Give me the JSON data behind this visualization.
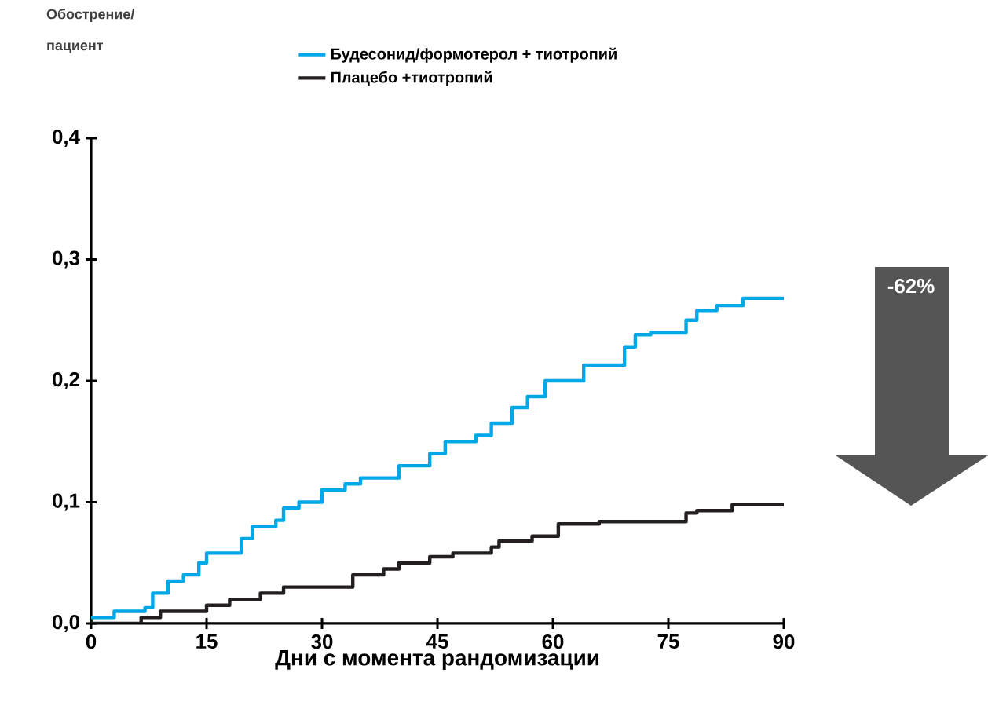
{
  "chart_data": {
    "type": "step",
    "xlabel": "Дни с момента рандомизации",
    "ylabel": "Обострение/ пациент",
    "annotations": [
      "-62%"
    ],
    "xlim": [
      0,
      90
    ],
    "ylim": [
      0,
      0.4
    ],
    "xticks": [
      0,
      15,
      30,
      45,
      60,
      75,
      90
    ],
    "yticks": [
      {
        "value": 0,
        "label": "0,0"
      },
      {
        "value": 0.1,
        "label": "0,1"
      },
      {
        "value": 0.2,
        "label": "0,2"
      },
      {
        "value": 0.3,
        "label": "0,3"
      },
      {
        "value": 0.4,
        "label": "0,4"
      }
    ],
    "grid": false,
    "legend": "top",
    "marker": "none",
    "line_style": "solid",
    "series": [
      {
        "name": "Будесонид/формотерол  + тиотропий",
        "color": "#00a8e8",
        "x": [
          0,
          3,
          7,
          8,
          10,
          12,
          14,
          15,
          19.5,
          21,
          24,
          25,
          27,
          30,
          33,
          35,
          40,
          44,
          46,
          50,
          52,
          54.7,
          56.7,
          59,
          64,
          69.3,
          70.7,
          72.7,
          77.3,
          78.7,
          81.3,
          84.7,
          90
        ],
        "values": [
          0.005,
          0.01,
          0.013,
          0.025,
          0.035,
          0.04,
          0.05,
          0.058,
          0.07,
          0.08,
          0.085,
          0.095,
          0.1,
          0.11,
          0.115,
          0.12,
          0.13,
          0.14,
          0.15,
          0.155,
          0.165,
          0.178,
          0.187,
          0.2,
          0.213,
          0.228,
          0.238,
          0.24,
          0.25,
          0.258,
          0.262,
          0.268,
          0.268
        ]
      },
      {
        "name": "Плацебо +тиотропий",
        "color": "#231f20",
        "x": [
          0,
          6.5,
          9,
          15,
          18,
          22,
          25,
          34,
          38,
          40,
          44,
          47,
          52,
          53,
          57.3,
          60.7,
          66,
          77.3,
          78.7,
          83.3,
          90
        ],
        "values": [
          0,
          0.005,
          0.01,
          0.015,
          0.02,
          0.025,
          0.03,
          0.04,
          0.045,
          0.05,
          0.055,
          0.058,
          0.063,
          0.068,
          0.072,
          0.082,
          0.084,
          0.091,
          0.093,
          0.098,
          0.098
        ]
      }
    ]
  }
}
